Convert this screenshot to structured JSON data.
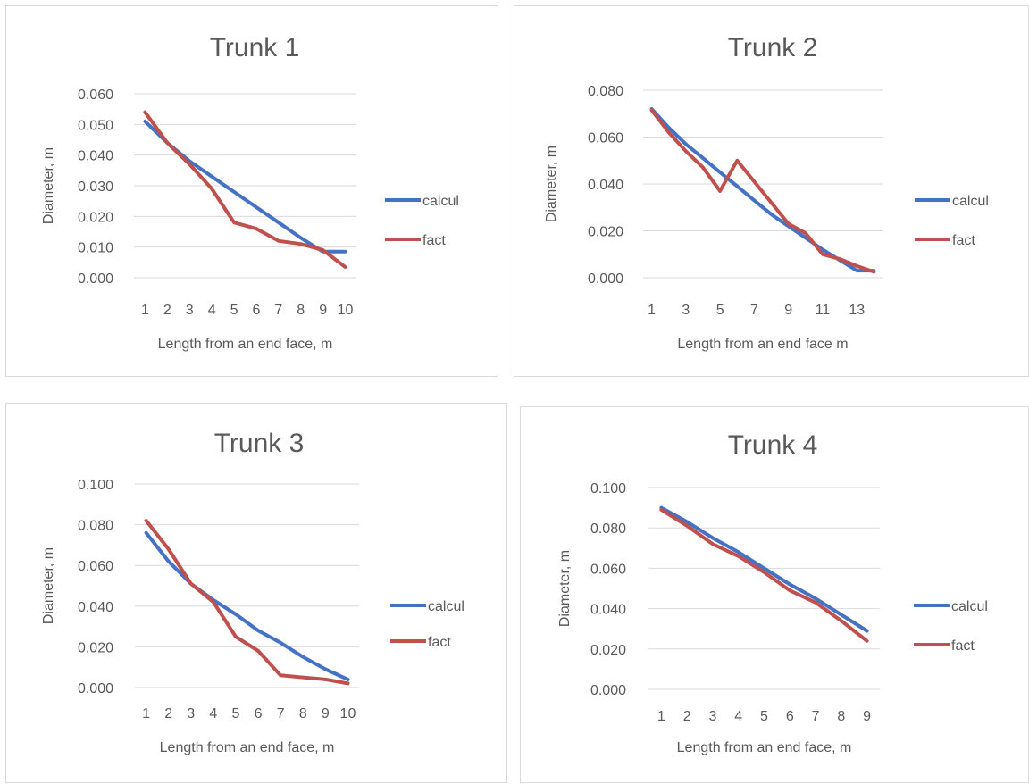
{
  "colors": {
    "calcul": "#4472c4",
    "fact": "#c0504d"
  },
  "chart_data": [
    {
      "type": "line",
      "title": "Trunk 1",
      "xlabel": "Length from an end face, m",
      "ylabel": "Diameter, m",
      "categories": [
        "1",
        "2",
        "3",
        "4",
        "5",
        "6",
        "7",
        "8",
        "9",
        "10"
      ],
      "x_tick_labels": [
        "1",
        "2",
        "3",
        "4",
        "5",
        "6",
        "7",
        "8",
        "9",
        "10"
      ],
      "y_tick_labels": [
        "0.000",
        "0.010",
        "0.020",
        "0.030",
        "0.040",
        "0.050",
        "0.060"
      ],
      "ylim": [
        0,
        0.06
      ],
      "grid": true,
      "legend": "right",
      "series": [
        {
          "name": "calcul",
          "values": [
            0.051,
            0.044,
            0.038,
            0.033,
            0.028,
            0.023,
            0.018,
            0.013,
            0.0085,
            0.0085
          ]
        },
        {
          "name": "fact",
          "values": [
            0.054,
            0.044,
            0.037,
            0.029,
            0.018,
            0.016,
            0.012,
            0.011,
            0.009,
            0.0035
          ]
        }
      ]
    },
    {
      "type": "line",
      "title": "Trunk 2",
      "xlabel": "Length from an end face m",
      "ylabel": "Diameter, m",
      "categories": [
        "1",
        "2",
        "3",
        "4",
        "5",
        "6",
        "7",
        "8",
        "9",
        "10",
        "11",
        "12",
        "13",
        "14"
      ],
      "x_tick_labels": [
        "1",
        "",
        "3",
        "",
        "5",
        "",
        "7",
        "",
        "9",
        "",
        "11",
        "",
        "13",
        ""
      ],
      "y_tick_labels": [
        "0.000",
        "0.020",
        "0.040",
        "0.060",
        "0.080"
      ],
      "ylim": [
        0,
        0.08
      ],
      "grid": true,
      "legend": "right",
      "series": [
        {
          "name": "calcul",
          "values": [
            0.072,
            0.064,
            0.057,
            0.051,
            0.045,
            0.039,
            0.033,
            0.027,
            0.022,
            0.017,
            0.012,
            0.0075,
            0.003,
            0.003
          ]
        },
        {
          "name": "fact",
          "values": [
            0.0715,
            0.062,
            0.054,
            0.047,
            0.037,
            0.05,
            0.041,
            0.032,
            0.023,
            0.019,
            0.01,
            0.008,
            0.005,
            0.0025
          ]
        }
      ]
    },
    {
      "type": "line",
      "title": "Trunk 3",
      "xlabel": "Length from an end face, m",
      "ylabel": "Diameter, m",
      "categories": [
        "1",
        "2",
        "3",
        "4",
        "5",
        "6",
        "7",
        "8",
        "9",
        "10"
      ],
      "x_tick_labels": [
        "1",
        "2",
        "3",
        "4",
        "5",
        "6",
        "7",
        "8",
        "9",
        "10"
      ],
      "y_tick_labels": [
        "0.000",
        "0.020",
        "0.040",
        "0.060",
        "0.080",
        "0.100"
      ],
      "ylim": [
        0,
        0.1
      ],
      "grid": true,
      "legend": "right",
      "series": [
        {
          "name": "calcul",
          "values": [
            0.076,
            0.062,
            0.051,
            0.043,
            0.036,
            0.028,
            0.022,
            0.015,
            0.009,
            0.004
          ]
        },
        {
          "name": "fact",
          "values": [
            0.082,
            0.068,
            0.051,
            0.042,
            0.025,
            0.018,
            0.006,
            0.005,
            0.004,
            0.002
          ]
        }
      ]
    },
    {
      "type": "line",
      "title": "Trunk 4",
      "xlabel": "Length from an end face, m",
      "ylabel": "Diameter, m",
      "categories": [
        "1",
        "2",
        "3",
        "4",
        "5",
        "6",
        "7",
        "8",
        "9"
      ],
      "x_tick_labels": [
        "1",
        "2",
        "3",
        "4",
        "5",
        "6",
        "7",
        "8",
        "9"
      ],
      "y_tick_labels": [
        "0.000",
        "0.020",
        "0.040",
        "0.060",
        "0.080",
        "0.100"
      ],
      "ylim": [
        0,
        0.1
      ],
      "grid": true,
      "legend": "right",
      "series": [
        {
          "name": "calcul",
          "values": [
            0.09,
            0.083,
            0.075,
            0.068,
            0.06,
            0.052,
            0.045,
            0.037,
            0.029
          ]
        },
        {
          "name": "fact",
          "values": [
            0.089,
            0.081,
            0.072,
            0.066,
            0.058,
            0.049,
            0.043,
            0.034,
            0.024
          ]
        }
      ]
    }
  ]
}
